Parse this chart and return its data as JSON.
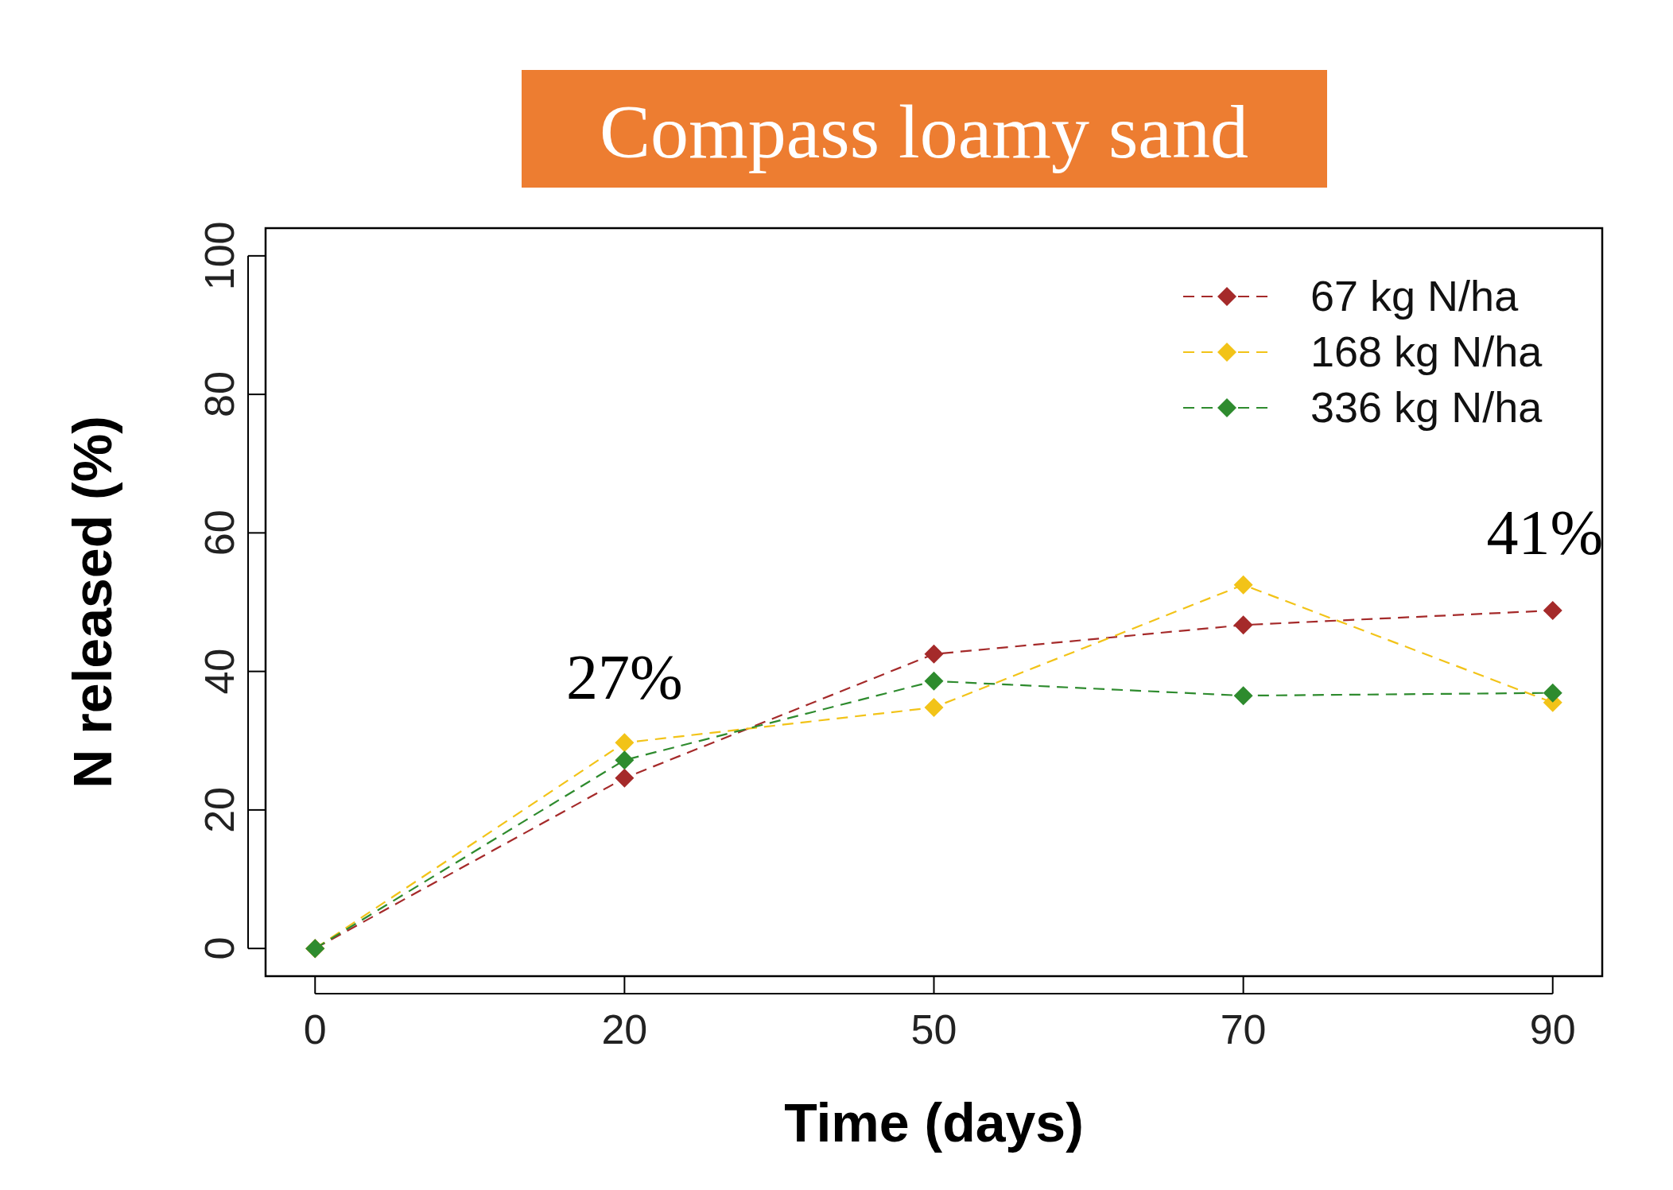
{
  "chart_data": {
    "type": "line",
    "title": "Compass loamy sand",
    "xlabel": "Time (days)",
    "ylabel": "N released (%)",
    "categories": [
      "0",
      "20",
      "50",
      "70",
      "90"
    ],
    "series": [
      {
        "name": "67 kg N/ha",
        "color": "#a52a2a",
        "values": [
          0,
          24.6,
          42.5,
          46.7,
          48.8
        ]
      },
      {
        "name": "168 kg N/ha",
        "color": "#f2c318",
        "values": [
          0,
          29.7,
          34.8,
          52.5,
          35.5
        ]
      },
      {
        "name": "336 kg N/ha",
        "color": "#2e8b2e",
        "values": [
          0,
          27.2,
          38.6,
          36.5,
          36.9
        ]
      }
    ],
    "ylim": [
      -4,
      104
    ],
    "yticks": [
      0,
      20,
      40,
      60,
      80,
      100
    ],
    "grid": false,
    "legend": "top right",
    "marker": "diamond",
    "line_style": "dashed",
    "annotations": [
      "27%",
      "41%"
    ]
  }
}
